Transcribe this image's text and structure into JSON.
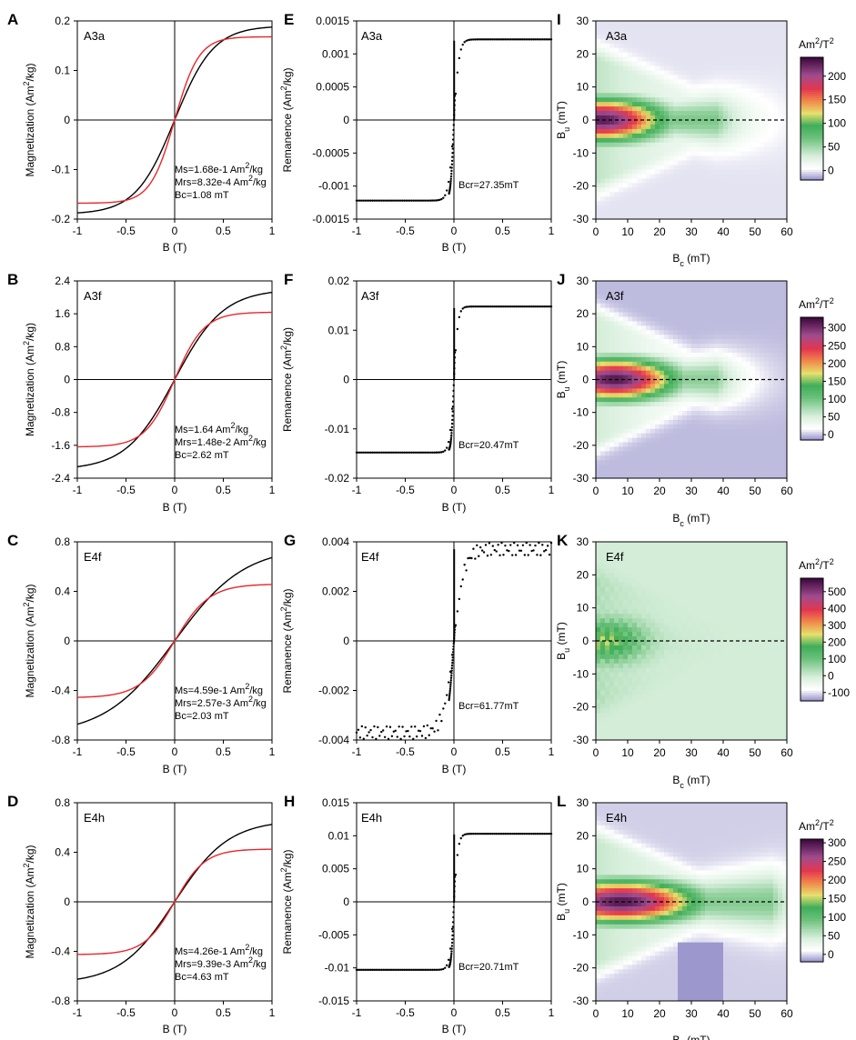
{
  "figure": {
    "colorbar_unit_main": "Am",
    "colorbar_unit_sup1": "2",
    "colorbar_unit_mid": "/T",
    "colorbar_unit_sup2": "2",
    "forc_xlabel_main": "B",
    "forc_xlabel_sub": "c",
    "forc_xlabel_unit": " (mT)",
    "forc_ylabel_main": "B",
    "forc_ylabel_sub": "u",
    "forc_ylabel_unit": " (mT)",
    "loop_ylabel_pre": "Magnetization (Am",
    "rem_ylabel_pre": "Remanence (Am",
    "unit_sup": "2",
    "unit_post": "/kg)",
    "colors": {
      "saturated": "#e8262b",
      "hysteresis": "#000000",
      "contour_green": "#3fae5a"
    }
  },
  "chart_data": [
    {
      "panel": "A",
      "type": "line",
      "sample": "A3a",
      "xlabel": "B (T)",
      "xlim": [
        -1,
        1
      ],
      "xticks": [
        "-1",
        "-0.5",
        "0",
        "0.5",
        "1"
      ],
      "yticks": [
        "0.2",
        "0.1",
        "0",
        "-0.1",
        "-0.2"
      ],
      "ylim": [
        -0.2,
        0.2
      ],
      "series": [
        {
          "name": "Hysteresis",
          "color": "#000000",
          "ms": 0.19,
          "k": 2.5
        },
        {
          "name": "Slope corrected",
          "color": "#e8262b",
          "ms": 0.168,
          "k": 4.0
        }
      ],
      "annotations": [
        {
          "pre": "Ms=1.68e-1 Am",
          "sup": "2",
          "post": "/kg"
        },
        {
          "pre": "Mrs=8.32e-4 Am",
          "sup": "2",
          "post": "/kg"
        },
        {
          "pre": "Bc=1.08 mT",
          "sup": "",
          "post": ""
        }
      ]
    },
    {
      "panel": "B",
      "type": "line",
      "sample": "A3f",
      "xlabel": "B (T)",
      "xlim": [
        -1,
        1
      ],
      "xticks": [
        "-1",
        "-0.5",
        "0",
        "0.5",
        "1"
      ],
      "yticks": [
        "2.4",
        "1.6",
        "0.8",
        "0",
        "-0.8",
        "-1.6",
        "-2.4"
      ],
      "ylim": [
        -2.4,
        2.4
      ],
      "series": [
        {
          "name": "Hysteresis",
          "color": "#000000",
          "ms": 2.2,
          "k": 2.0
        },
        {
          "name": "Slope corrected",
          "color": "#e8262b",
          "ms": 1.64,
          "k": 3.3
        }
      ],
      "annotations": [
        {
          "pre": "Ms=1.64 Am",
          "sup": "2",
          "post": "/kg"
        },
        {
          "pre": "Mrs=1.48e-2 Am",
          "sup": "2",
          "post": "/kg"
        },
        {
          "pre": "Bc=2.62 mT",
          "sup": "",
          "post": ""
        }
      ]
    },
    {
      "panel": "C",
      "type": "line",
      "sample": "E4f",
      "xlabel": "B (T)",
      "xlim": [
        -1,
        1
      ],
      "xticks": [
        "-1",
        "-0.5",
        "0",
        "0.5",
        "1"
      ],
      "yticks": [
        "0.8",
        "0.4",
        "0",
        "-0.4",
        "-0.8"
      ],
      "ylim": [
        -0.8,
        0.8
      ],
      "series": [
        {
          "name": "Hysteresis",
          "color": "#000000",
          "ms": 0.76,
          "k": 1.4
        },
        {
          "name": "Slope corrected",
          "color": "#e8262b",
          "ms": 0.459,
          "k": 2.8
        }
      ],
      "annotations": [
        {
          "pre": "Ms=4.59e-1 Am",
          "sup": "2",
          "post": "/kg"
        },
        {
          "pre": "Mrs=2.57e-3 Am",
          "sup": "2",
          "post": "/kg"
        },
        {
          "pre": "Bc=2.03 mT",
          "sup": "",
          "post": ""
        }
      ]
    },
    {
      "panel": "D",
      "type": "line",
      "sample": "E4h",
      "xlabel": "B (T)",
      "xlim": [
        -1,
        1
      ],
      "xticks": [
        "-1",
        "-0.5",
        "0",
        "0.5",
        "1"
      ],
      "yticks": [
        "0.8",
        "0.4",
        "0",
        "-0.4",
        "-0.8"
      ],
      "ylim": [
        -0.8,
        0.8
      ],
      "series": [
        {
          "name": "Hysteresis",
          "color": "#000000",
          "ms": 0.66,
          "k": 1.8
        },
        {
          "name": "Slope corrected",
          "color": "#e8262b",
          "ms": 0.426,
          "k": 3.2
        }
      ],
      "annotations": [
        {
          "pre": "Ms=4.26e-1 Am",
          "sup": "2",
          "post": "/kg"
        },
        {
          "pre": "Mrs=9.39e-3 Am",
          "sup": "2",
          "post": "/kg"
        },
        {
          "pre": "Bc=4.63 mT",
          "sup": "",
          "post": ""
        }
      ]
    },
    {
      "panel": "E",
      "type": "scatter",
      "sample": "A3a",
      "xlabel": "B (T)",
      "xlim": [
        -1,
        1
      ],
      "xticks": [
        "-1",
        "-0.5",
        "0",
        "0.5",
        "1"
      ],
      "yticks": [
        "0.0015",
        "0.001",
        "0.0005",
        "0",
        "-0.0005",
        "-0.001",
        "-0.0015"
      ],
      "ylim": [
        -0.0015,
        0.0015
      ],
      "sat": 0.00122,
      "bcr_T": 0.02735,
      "jump_to": 0.0012,
      "annotation": "Bcr=27.35mT"
    },
    {
      "panel": "F",
      "type": "scatter",
      "sample": "A3f",
      "xlabel": "B (T)",
      "xlim": [
        -1,
        1
      ],
      "xticks": [
        "-1",
        "-0.5",
        "0",
        "0.5",
        "1"
      ],
      "yticks": [
        "0.02",
        "0.01",
        "0",
        "-0.01",
        "-0.02"
      ],
      "ylim": [
        -0.02,
        0.02
      ],
      "sat": 0.0148,
      "bcr_T": 0.02047,
      "jump_to": 0.0145,
      "annotation": "Bcr=20.47mT"
    },
    {
      "panel": "G",
      "type": "scatter",
      "sample": "E4f",
      "xlabel": "B (T)",
      "xlim": [
        -1,
        1
      ],
      "xticks": [
        "-1",
        "-0.5",
        "0",
        "0.5",
        "1"
      ],
      "yticks": [
        "0.004",
        "0.002",
        "0",
        "-0.002",
        "-0.004"
      ],
      "ylim": [
        -0.004,
        0.004
      ],
      "sat": 0.0037,
      "bcr_T": 0.06177,
      "jump_to": 0.0037,
      "annotation": "Bcr=61.77mT"
    },
    {
      "panel": "H",
      "type": "scatter",
      "sample": "E4h",
      "xlabel": "B (T)",
      "xlim": [
        -1,
        1
      ],
      "xticks": [
        "-1",
        "-0.5",
        "0",
        "0.5",
        "1"
      ],
      "yticks": [
        "0.015",
        "0.01",
        "0.005",
        "0",
        "-0.005",
        "-0.01",
        "-0.015"
      ],
      "ylim": [
        -0.015,
        0.015
      ],
      "sat": 0.0103,
      "bcr_T": 0.02071,
      "jump_to": 0.0102,
      "annotation": "Bcr=20.71mT"
    },
    {
      "panel": "I",
      "type": "heatmap",
      "sample": "A3a",
      "xlim": [
        0,
        60
      ],
      "ylim": [
        -30,
        30
      ],
      "xticks": [
        "0",
        "10",
        "20",
        "30",
        "40",
        "50",
        "60"
      ],
      "yticks": [
        "30",
        "20",
        "10",
        "0",
        "-10",
        "-20",
        "-30"
      ],
      "colorbar_ticks": [
        "200",
        "150",
        "100",
        "50",
        "0"
      ],
      "colorbar_values": [
        200,
        150,
        100,
        50,
        0
      ],
      "colorbar_range": [
        -20,
        240
      ],
      "peak_bc": 2,
      "peak_value": 230,
      "spread_bc": 38
    },
    {
      "panel": "J",
      "type": "heatmap",
      "sample": "A3f",
      "xlim": [
        0,
        60
      ],
      "ylim": [
        -30,
        30
      ],
      "xticks": [
        "0",
        "10",
        "20",
        "30",
        "40",
        "50",
        "60"
      ],
      "yticks": [
        "30",
        "20",
        "10",
        "0",
        "-10",
        "-20",
        "-30"
      ],
      "colorbar_ticks": [
        "300",
        "250",
        "200",
        "150",
        "100",
        "50",
        "0"
      ],
      "colorbar_values": [
        300,
        250,
        200,
        150,
        100,
        50,
        0
      ],
      "colorbar_range": [
        -15,
        330
      ],
      "peak_bc": 6,
      "peak_value": 320,
      "spread_bc": 38
    },
    {
      "panel": "K",
      "type": "heatmap",
      "sample": "E4f",
      "xlim": [
        0,
        60
      ],
      "ylim": [
        -30,
        30
      ],
      "xticks": [
        "0",
        "10",
        "20",
        "30",
        "40",
        "50",
        "60"
      ],
      "yticks": [
        "30",
        "20",
        "10",
        "0",
        "-10",
        "-20",
        "-30"
      ],
      "colorbar_ticks": [
        "500",
        "400",
        "300",
        "200",
        "100",
        "0",
        "-100"
      ],
      "colorbar_values": [
        500,
        400,
        300,
        200,
        100,
        0,
        -100
      ],
      "colorbar_range": [
        -150,
        580
      ],
      "peak_bc": 3,
      "peak_value": 250,
      "spread_bc": 12
    },
    {
      "panel": "L",
      "type": "heatmap",
      "sample": "E4h",
      "xlim": [
        0,
        60
      ],
      "ylim": [
        -30,
        30
      ],
      "xticks": [
        "0",
        "10",
        "20",
        "30",
        "40",
        "50",
        "60"
      ],
      "yticks": [
        "30",
        "20",
        "10",
        "0",
        "-10",
        "-20",
        "-30"
      ],
      "colorbar_ticks": [
        "300",
        "250",
        "200",
        "150",
        "100",
        "50",
        "0"
      ],
      "colorbar_values": [
        300,
        250,
        200,
        150,
        100,
        50,
        0
      ],
      "colorbar_range": [
        -20,
        310
      ],
      "peak_bc": 8,
      "peak_value": 300,
      "spread_bc": 55
    }
  ]
}
